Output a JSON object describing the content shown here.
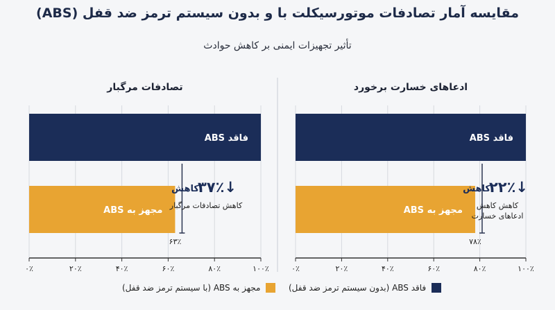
{
  "title": "مقایسه آمار تصادفات موتورسیکلت با و بدون سیستم ترمز ضد قفل (ABS)",
  "subtitle": "تأثیر تجهیزات ایمنی بر کاهش حوادث",
  "colors": {
    "no_abs": "#1b2d58",
    "with_abs": "#e8a432",
    "axis": "#333333",
    "grid": "#d6d9df"
  },
  "legend": {
    "no_abs": "فاقد ABS (بدون سیستم ترمز ضد قفل)",
    "with_abs": "مجهز به ABS (با سیستم ترمز ضد قفل)"
  },
  "chart_data": [
    {
      "type": "bar",
      "title": "تصادفات مرگبار",
      "categories": [
        "فاقد ABS",
        "مجهز به ABS"
      ],
      "values": [
        100,
        63
      ],
      "value_labels": [
        "",
        "۶۳٪"
      ],
      "xlim": [
        0,
        100
      ],
      "ticks": [
        "۰٪",
        "۲۰٪",
        "۴۰٪",
        "۶۰٪",
        "۸۰٪",
        "۱۰۰٪"
      ],
      "reduction": {
        "value": 37,
        "text": "۳۷٪",
        "word": "کاهش",
        "arrow": "↓",
        "lines": [
          "کاهش تصادفات مرگبار"
        ]
      }
    },
    {
      "type": "bar",
      "title": "ادعاهای خسارت برخورد",
      "categories": [
        "فاقد ABS",
        "مجهز به ABS"
      ],
      "values": [
        100,
        78
      ],
      "value_labels": [
        "",
        "۷۸٪"
      ],
      "xlim": [
        0,
        100
      ],
      "ticks": [
        "۰٪",
        "۲۰٪",
        "۴۰٪",
        "۶۰٪",
        "۸۰٪",
        "۱۰۰٪"
      ],
      "reduction": {
        "value": 22,
        "text": "۲۲٪",
        "word": "کاهش",
        "arrow": "↓",
        "lines": [
          "کاهش کاهش",
          "ادعاهای خسارت"
        ]
      }
    }
  ]
}
